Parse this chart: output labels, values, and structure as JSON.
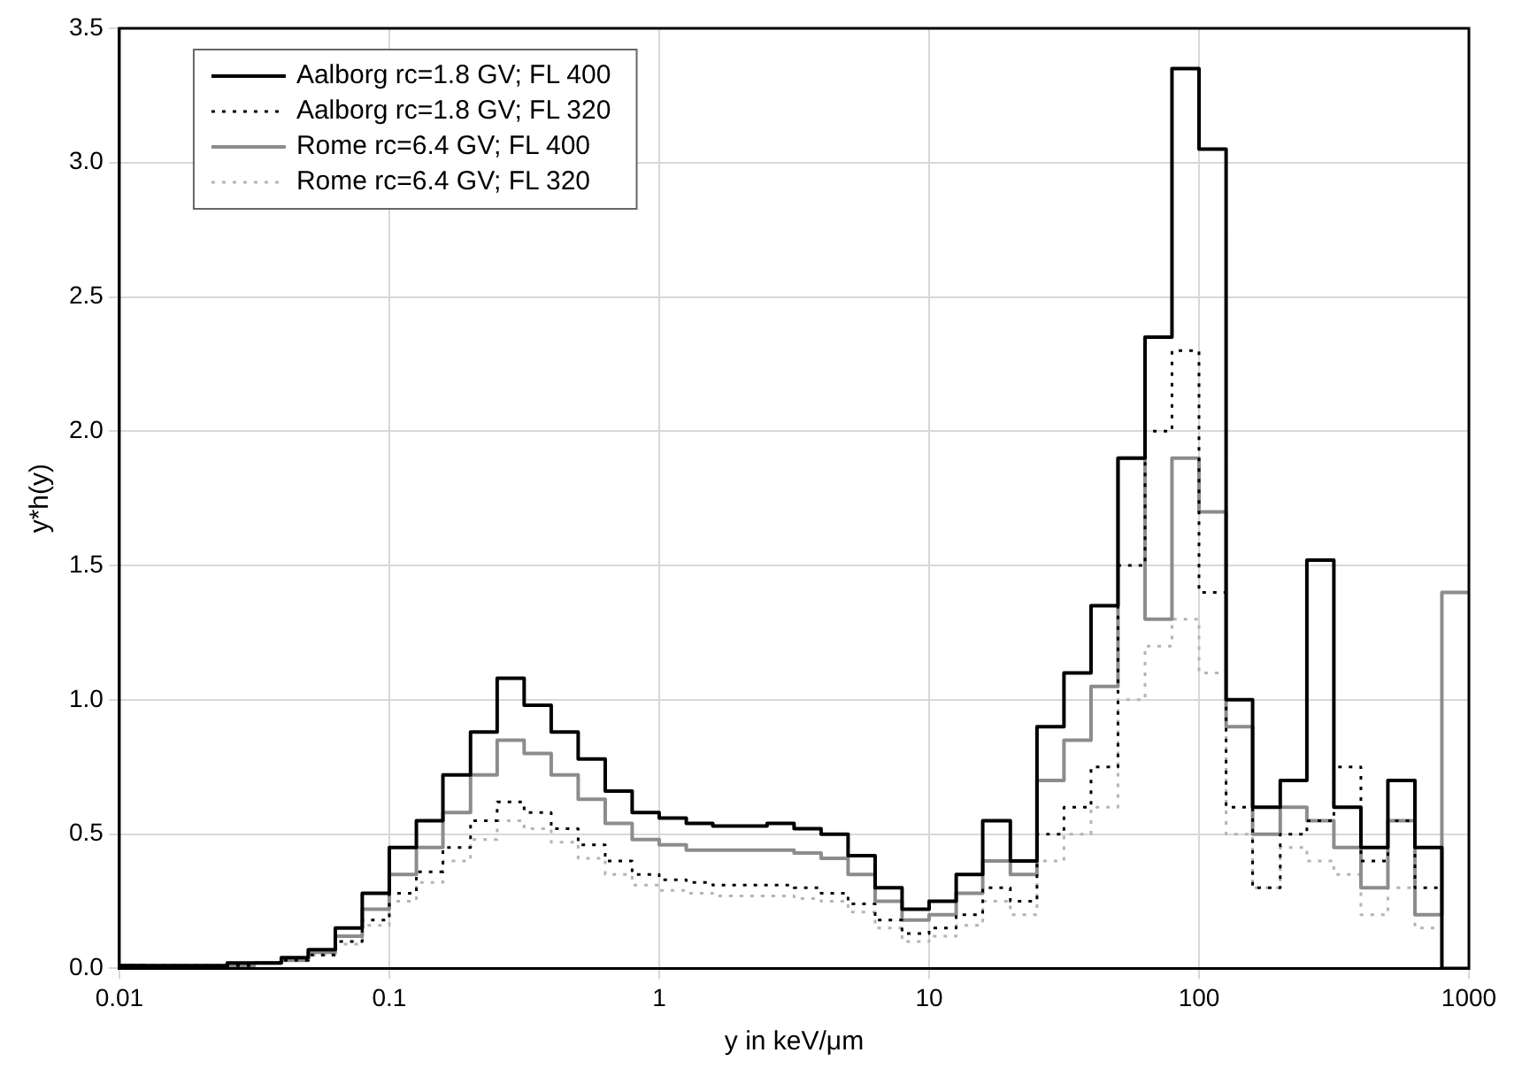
{
  "chart_data": {
    "type": "step",
    "xlabel": "y in keV/μm",
    "ylabel": "y*h(y)",
    "log": "x",
    "grid": true,
    "legend": "top left",
    "marker": "none",
    "xlim": [
      0.01,
      1000
    ],
    "xticks": [
      0.01,
      0.1,
      1,
      10,
      100,
      1000
    ],
    "ylim": [
      0,
      3.5
    ],
    "yticks": [
      {
        "value": 0,
        "label": "0.0"
      },
      0.5,
      {
        "value": 1,
        "label": "1.0"
      },
      1.5,
      {
        "value": 2,
        "label": "2.0"
      },
      2.5,
      {
        "value": 3,
        "label": "3.0"
      },
      3.5
    ],
    "x": [
      0.01,
      0.0126,
      0.0158,
      0.02,
      0.0251,
      0.0316,
      0.0398,
      0.0501,
      0.0631,
      0.0794,
      0.1,
      0.126,
      0.158,
      0.2,
      0.251,
      0.316,
      0.398,
      0.501,
      0.631,
      0.794,
      1,
      1.26,
      1.58,
      2,
      2.51,
      3.16,
      3.98,
      5.01,
      6.31,
      7.94,
      10,
      12.6,
      15.8,
      20,
      25.1,
      31.6,
      39.8,
      50.1,
      63.1,
      79.4,
      100,
      126,
      158,
      200,
      251,
      316,
      398,
      501,
      631,
      794,
      1000
    ],
    "series": [
      {
        "name": "Aalborg rc=1.8 GV; FL 400",
        "color": "#000000",
        "line_style": "solid",
        "values": [
          0.01,
          0.01,
          0.01,
          0.01,
          0.01,
          0.02,
          0.02,
          0.04,
          0.07,
          0.15,
          0.28,
          0.45,
          0.55,
          0.72,
          0.88,
          1.08,
          0.98,
          0.88,
          0.78,
          0.66,
          0.58,
          0.56,
          0.54,
          0.53,
          0.53,
          0.54,
          0.52,
          0.5,
          0.42,
          0.3,
          0.22,
          0.25,
          0.35,
          0.55,
          0.4,
          0.9,
          1.1,
          1.35,
          1.9,
          2.35,
          3.35,
          3.05,
          1.0,
          0.6,
          0.7,
          1.52,
          0.6,
          0.45,
          0.7,
          0.45,
          0
        ]
      },
      {
        "name": "Aalborg rc=1.8 GV; FL 320",
        "color": "#000000",
        "line_style": "dotted",
        "values": [
          0.01,
          0.01,
          0.01,
          0.01,
          0.01,
          0.01,
          0.02,
          0.03,
          0.05,
          0.1,
          0.18,
          0.28,
          0.36,
          0.45,
          0.55,
          0.62,
          0.58,
          0.52,
          0.46,
          0.4,
          0.35,
          0.33,
          0.32,
          0.31,
          0.31,
          0.31,
          0.3,
          0.28,
          0.24,
          0.18,
          0.13,
          0.15,
          0.2,
          0.3,
          0.25,
          0.5,
          0.6,
          0.75,
          1.5,
          2.0,
          2.3,
          1.4,
          0.6,
          0.3,
          0.5,
          0.55,
          0.75,
          0.4,
          0.55,
          0.3,
          0
        ]
      },
      {
        "name": "Rome rc=6.4 GV; FL 400",
        "color": "#8c8c8c",
        "line_style": "solid",
        "values": [
          0.01,
          0.01,
          null,
          null,
          0.01,
          0.01,
          0.02,
          0.03,
          0.06,
          0.12,
          0.22,
          0.35,
          0.45,
          0.58,
          0.72,
          0.85,
          0.8,
          0.72,
          0.63,
          0.54,
          0.48,
          0.46,
          0.44,
          0.44,
          0.44,
          0.44,
          0.43,
          0.41,
          0.35,
          0.25,
          0.18,
          0.2,
          0.28,
          0.4,
          0.35,
          0.7,
          0.85,
          1.05,
          1.9,
          1.3,
          1.9,
          1.7,
          0.9,
          0.5,
          0.6,
          0.55,
          0.45,
          0.3,
          0.55,
          0.2,
          1.4
        ]
      },
      {
        "name": "Rome rc=6.4 GV; FL 320",
        "color": "#b4b4b4",
        "line_style": "dotted",
        "values": [
          0.01,
          0.01,
          null,
          null,
          0.01,
          0.01,
          0.02,
          0.03,
          0.05,
          0.09,
          0.16,
          0.25,
          0.32,
          0.4,
          0.48,
          0.55,
          0.52,
          0.47,
          0.41,
          0.35,
          0.31,
          0.29,
          0.28,
          0.27,
          0.27,
          0.27,
          0.26,
          0.25,
          0.21,
          0.15,
          0.1,
          0.12,
          0.16,
          0.25,
          0.2,
          0.4,
          0.5,
          0.6,
          1.0,
          1.2,
          1.3,
          1.1,
          0.5,
          0.3,
          0.45,
          0.4,
          0.35,
          0.2,
          0.3,
          0.15,
          0
        ]
      }
    ]
  }
}
